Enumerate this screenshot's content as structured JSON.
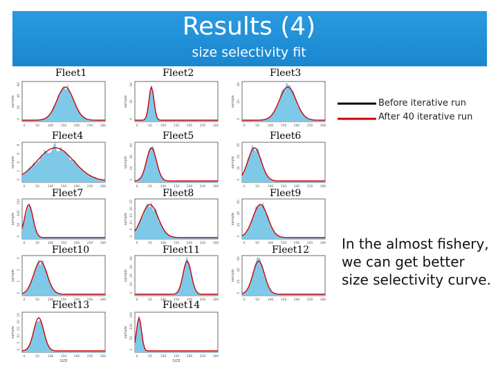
{
  "slide": {
    "title": "Results (4)",
    "subtitle": "size selectivity fit",
    "note": "In the almost fishery, we can get better size selectivity curve."
  },
  "legend": {
    "before_label": "Before iterative run",
    "after_label": "After 40 iterative run",
    "before_color": "#000000",
    "after_color": "#cc0000"
  },
  "colors": {
    "bars": "#7ec8e8",
    "banner": "#1d8fd8"
  },
  "fleets": [
    {
      "label": "Fleet1",
      "yticks": [
        "0",
        "20",
        "40",
        "60"
      ],
      "xticks": [
        "0",
        "50",
        "100",
        "150",
        "200",
        "250",
        "300"
      ]
    },
    {
      "label": "Fleet2",
      "yticks": [
        "0",
        "30",
        "60"
      ],
      "xticks": [
        "0",
        "50",
        "100",
        "150",
        "200",
        "250",
        "300"
      ]
    },
    {
      "label": "Fleet3",
      "yticks": [
        "0",
        "20",
        "40"
      ],
      "xticks": [
        "0",
        "50",
        "100",
        "150",
        "200",
        "250",
        "300"
      ]
    },
    {
      "label": "Fleet4",
      "yticks": [
        "0",
        "2",
        "4",
        "6",
        "8"
      ],
      "xticks": [
        "0",
        "50",
        "100",
        "150",
        "200",
        "250",
        "300"
      ]
    },
    {
      "label": "Fleet5",
      "yticks": [
        "0",
        "20",
        "40",
        "60"
      ],
      "xticks": [
        "0",
        "50",
        "100",
        "150",
        "200",
        "250",
        "300"
      ]
    },
    {
      "label": "Fleet6",
      "yticks": [
        "0",
        "10",
        "20",
        "30"
      ],
      "xticks": [
        "0",
        "50",
        "100",
        "150",
        "200",
        "250",
        "300"
      ]
    },
    {
      "label": "Fleet7",
      "yticks": [
        "0",
        "50",
        "100",
        "150"
      ],
      "xticks": [
        "0",
        "50",
        "100",
        "150",
        "200",
        "250",
        "300"
      ]
    },
    {
      "label": "Fleet8",
      "yticks": [
        "0",
        "5",
        "10",
        "15",
        "20",
        "25"
      ],
      "xticks": [
        "0",
        "50",
        "100",
        "150",
        "200",
        "250",
        "300"
      ]
    },
    {
      "label": "Fleet9",
      "yticks": [
        "0",
        "20",
        "40",
        "60"
      ],
      "xticks": [
        "0",
        "50",
        "100",
        "150",
        "200",
        "250",
        "300"
      ]
    },
    {
      "label": "Fleet10",
      "yticks": [
        "0",
        "1",
        "2",
        "3"
      ],
      "xticks": [
        "0",
        "50",
        "100",
        "150",
        "200",
        "250",
        "300"
      ]
    },
    {
      "label": "Fleet11",
      "yticks": [
        "0",
        "10",
        "20",
        "30",
        "40"
      ],
      "xticks": [
        "0",
        "50",
        "100",
        "150",
        "200",
        "250",
        "300"
      ]
    },
    {
      "label": "Fleet12",
      "yticks": [
        "0",
        "20",
        "40",
        "60"
      ],
      "xticks": [
        "0",
        "50",
        "100",
        "150",
        "200",
        "250",
        "300"
      ]
    },
    {
      "label": "Fleet13",
      "yticks": [
        "0",
        "5",
        "10",
        "15",
        "20",
        "25"
      ],
      "xticks": [
        "0",
        "50",
        "100",
        "150",
        "200",
        "250",
        "300"
      ]
    },
    {
      "label": "Fleet14",
      "yticks": [
        "0",
        "50",
        "100",
        "150"
      ],
      "xticks": [
        "0",
        "50",
        "100",
        "150",
        "200",
        "250",
        "300"
      ]
    }
  ],
  "axis": {
    "ylabel": "sample",
    "xlabel": "SIZE"
  }
}
